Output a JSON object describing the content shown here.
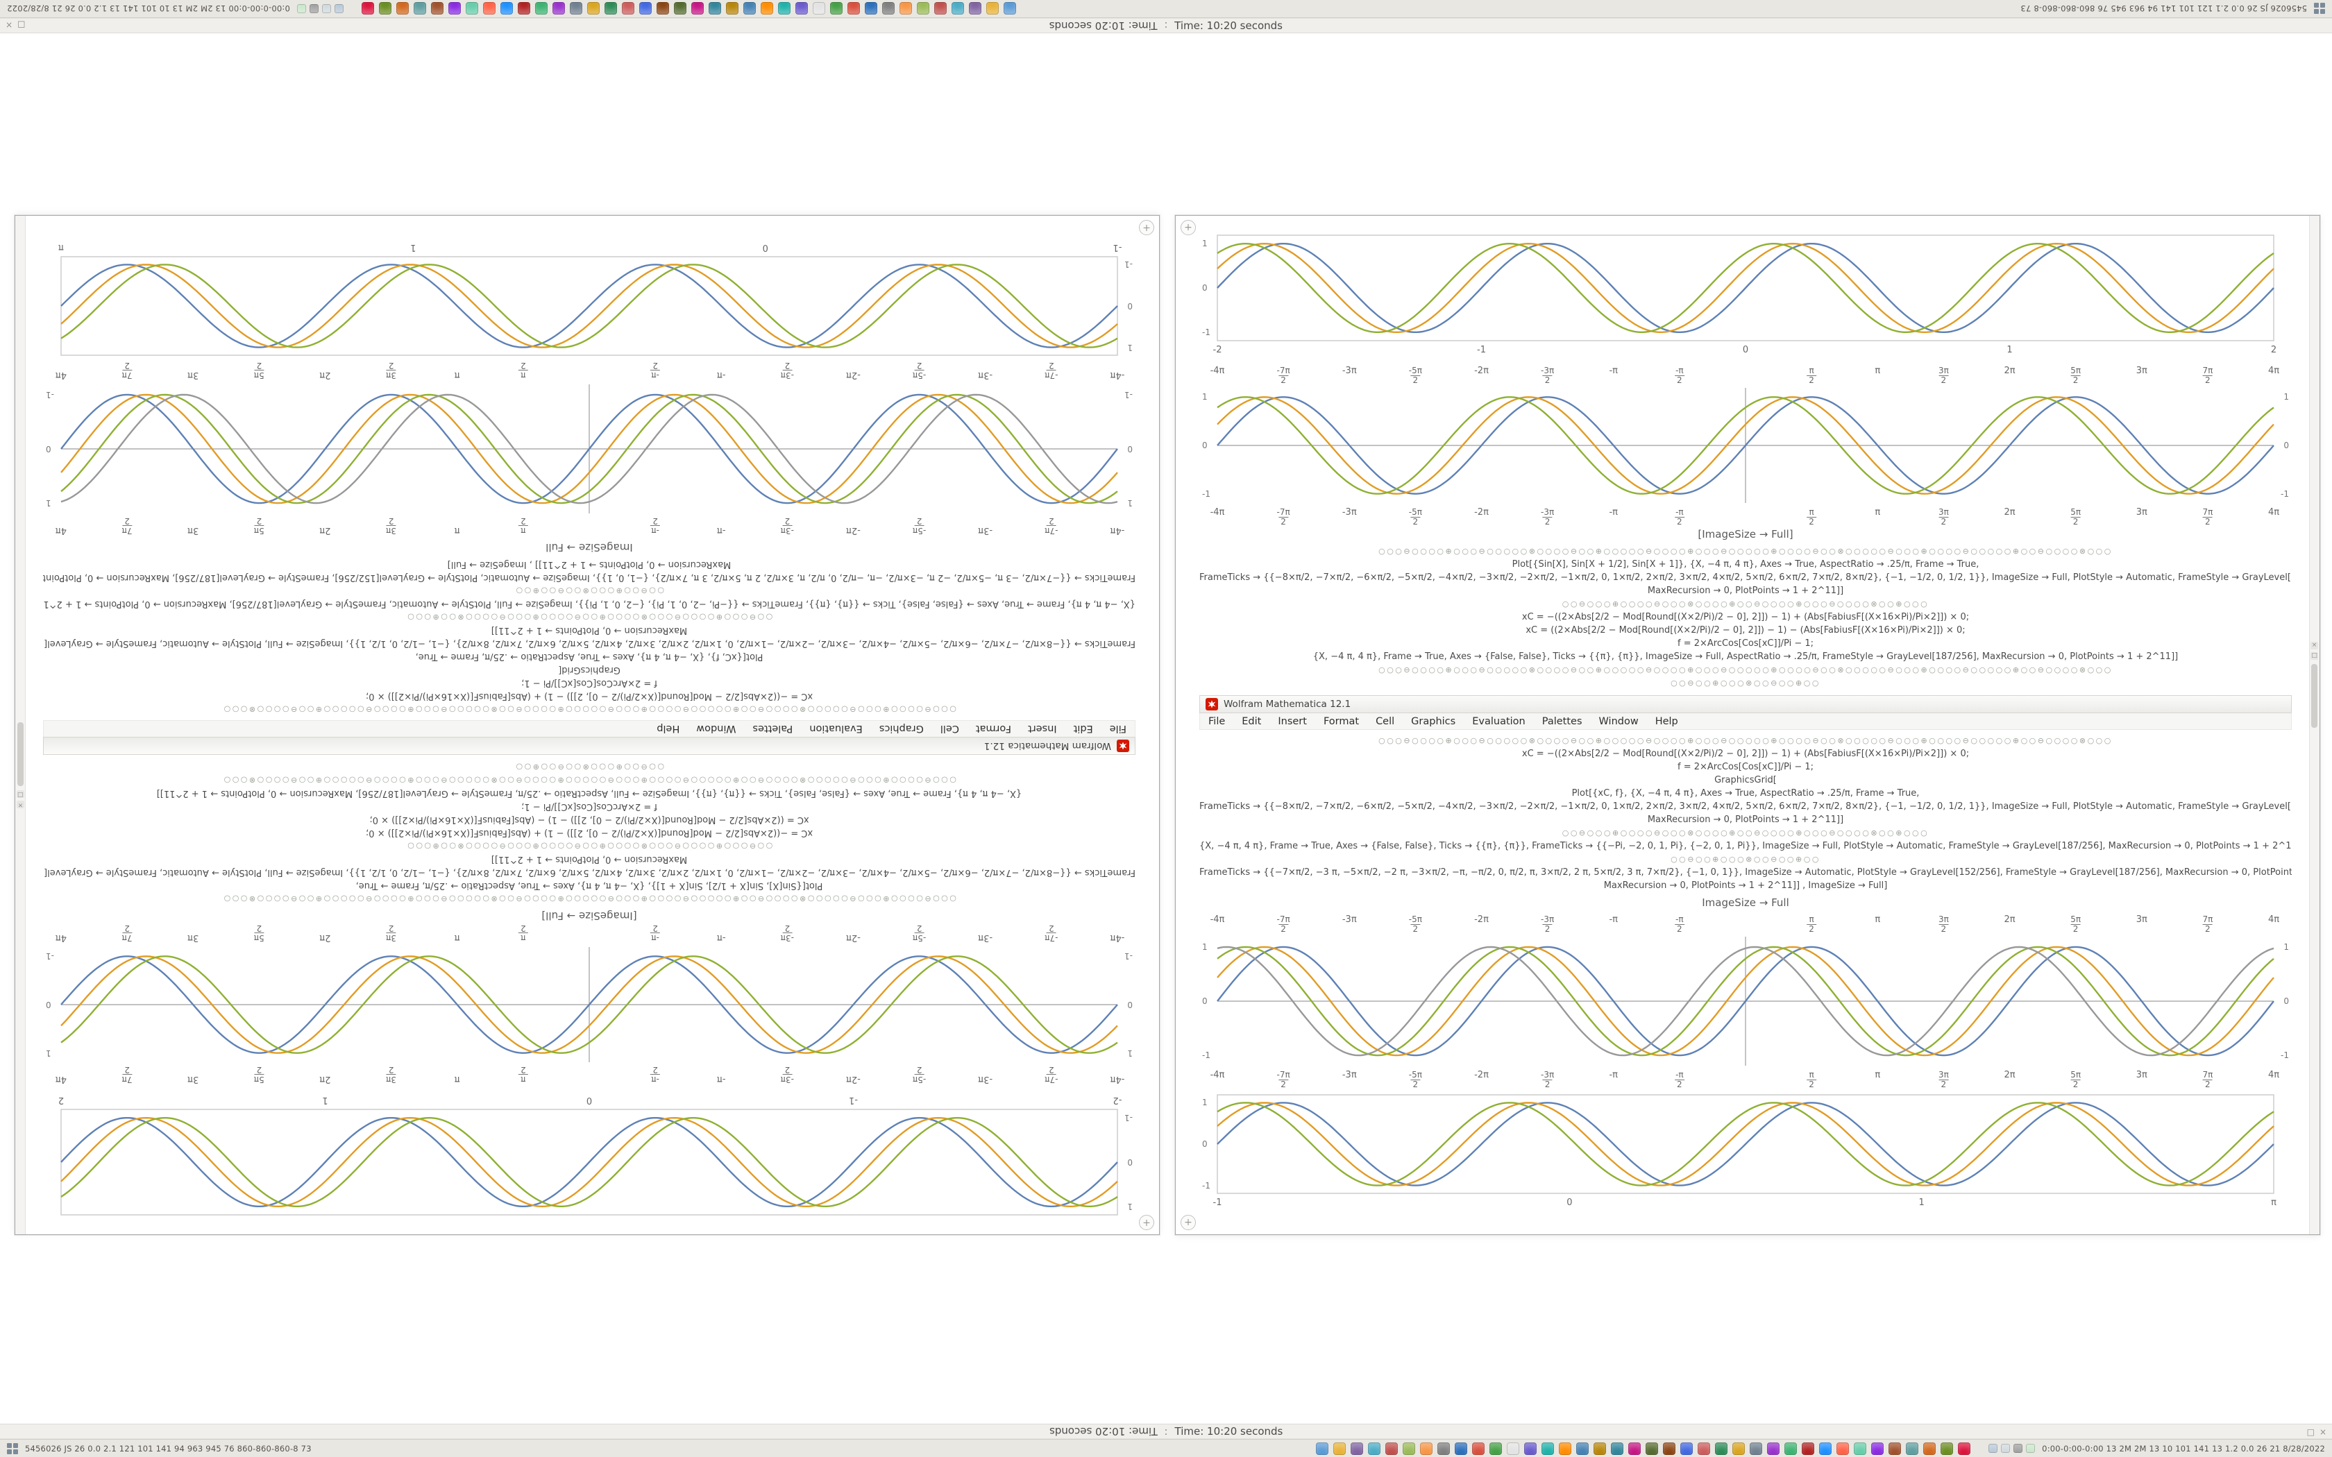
{
  "status_strip": {
    "time_text": "Time: 10:20 seconds",
    "separator": ":",
    "corner_glyphs": [
      "□",
      "×"
    ]
  },
  "taskbar": {
    "left_text": "5456026 JS 26 0.0 2.1 121 101 141 94 963 945 76 860-860-860-8 73",
    "right_text": "0:00-0:00-0:00 13 2M 2M 13 10 101 141 13 1.2 0.0 26 21 8/28/2022",
    "app_icon_colors": [
      "#5b9bd5",
      "#e8b339",
      "#8064a2",
      "#4bacc6",
      "#c0504d",
      "#9bbb59",
      "#f79646",
      "#7f7f7f",
      "#2c6fbb",
      "#d94f3d",
      "#46a046",
      "#e3e3e3",
      "#6a5acd",
      "#20b2aa",
      "#ff8c00",
      "#4682b4",
      "#b8860b",
      "#32859b",
      "#c71585",
      "#556b2f",
      "#8b4513",
      "#4169e1",
      "#cd5c5c",
      "#2e8b57",
      "#daa520",
      "#708090",
      "#9932cc",
      "#3cb371",
      "#b22222",
      "#1e90ff",
      "#ff6347",
      "#66cdaa",
      "#8a2be2",
      "#a0522d",
      "#5f9ea0",
      "#d2691e",
      "#6b8e23",
      "#dc143c"
    ],
    "tray_icon_colors": [
      "#b7c7d6",
      "#cfd8dc",
      "#9e9e9e",
      "#c8e6c9"
    ]
  },
  "window": {
    "title": "Wolfram Mathematica 12.1",
    "menu_items": [
      "File",
      "Edit",
      "Insert",
      "Format",
      "Cell",
      "Graphics",
      "Evaluation",
      "Palettes",
      "Window",
      "Help"
    ],
    "caption_upper": "[ImageSize → Full]",
    "caption_lower": "ImageSize → Full",
    "corner_button_glyph": "+",
    "scrollbar_glyphs": [
      "×",
      "□"
    ],
    "accent_color": "#d41900"
  },
  "code_block_a": [
    {
      "kind": "circles",
      "text": "○○○⊖○○○○⊕○○○⊖○○○○○⊗○○○○⊖○○⊕○○○○○⊖○○○○⊕○○○⊖○○○○○⊕○○○○⊖○○⊗○○○○○⊖○○○⊕○○○○⊖○○○○○⊕○○⊖○○○○⊗○○○"
    },
    {
      "kind": "code",
      "text": "Plot[{Sin[X], Sin[X + 1/2], Sin[X + 1]}, {X, −4 π, 4 π}, Axes → True, AspectRatio → .25/π, Frame → True,"
    },
    {
      "kind": "code",
      "text": "FrameTicks → {{−8×π/2, −7×π/2, −6×π/2, −5×π/2, −4×π/2, −3×π/2, −2×π/2, −1×π/2, 0, 1×π/2, 2×π/2, 3×π/2, 4×π/2, 5×π/2, 6×π/2, 7×π/2, 8×π/2}, {−1, −1/2, 0, 1/2, 1}}, ImageSize → Full, PlotStyle → Automatic, FrameStyle → GrayLevel[187/256],"
    },
    {
      "kind": "code",
      "text": "MaxRecursion → 0, PlotPoints → 1 + 2^11]]"
    },
    {
      "kind": "circles",
      "text": "○○⊖○○○⊕○○○○⊖○○○⊗○○○○⊕○○⊖○○○○⊕○○○⊖○○○○⊗○○⊕○○○"
    },
    {
      "kind": "code",
      "text": "xC = −((2×Abs[2/2 − Mod[Round[(X×2/Pi)/2 − 0], 2]]) − 1) + (Abs[FabiusF[(X×16×Pi)/Pi×2]]) × 0;"
    },
    {
      "kind": "code",
      "text": "xC = ((2×Abs[2/2 − Mod[Round[(X×2/Pi)/2 − 0], 2]]) − 1) − (Abs[FabiusF[(X×16×Pi)/Pi×2]]) × 0;"
    },
    {
      "kind": "code",
      "text": "f = 2×ArcCos[Cos[xC]]/Pi − 1;"
    },
    {
      "kind": "code",
      "text": "{X, −4 π, 4 π}, Frame → True, Axes → {False, False}, Ticks → {{π}, {π}}, ImageSize → Full, AspectRatio → .25/π, FrameStyle → GrayLevel[187/256], MaxRecursion → 0, PlotPoints → 1 + 2^11]]"
    },
    {
      "kind": "circles",
      "text": "○○○⊖○○○○⊕○○○⊖○○○○○⊗○○○○⊖○○⊕○○○○○⊖○○○○⊕○○○⊖○○○○○⊕○○○○⊖○○⊗○○○○○⊖○○○⊕○○○○⊖○○○○○⊕○○⊖○○○○⊗○○○"
    },
    {
      "kind": "circles",
      "text": "○○⊖○○⊕○○○⊗○○⊖○○⊕○○"
    }
  ],
  "code_block_b": [
    {
      "kind": "circles",
      "text": "○○○⊖○○○○⊕○○○⊖○○○○○⊗○○○○⊖○○⊕○○○○○⊖○○○○⊕○○○⊖○○○○○⊕○○○○⊖○○⊗○○○○○⊖○○○⊕○○○○⊖○○○○○⊕○○⊖○○○○⊗○○○"
    },
    {
      "kind": "code",
      "text": "xC = −((2×Abs[2/2 − Mod[Round[(X×2/Pi)/2 − 0], 2]]) − 1) + (Abs[FabiusF[(X×16×Pi)/Pi×2]]) × 0;"
    },
    {
      "kind": "code",
      "text": "f = 2×ArcCos[Cos[xC]]/Pi − 1;"
    },
    {
      "kind": "code",
      "text": "GraphicsGrid["
    },
    {
      "kind": "code",
      "text": "Plot[{xC, f}, {X, −4 π, 4 π}, Axes → True, AspectRatio → .25/π, Frame → True,"
    },
    {
      "kind": "code",
      "text": "FrameTicks → {{−8×π/2, −7×π/2, −6×π/2, −5×π/2, −4×π/2, −3×π/2, −2×π/2, −1×π/2, 0, 1×π/2, 2×π/2, 3×π/2, 4×π/2, 5×π/2, 6×π/2, 7×π/2, 8×π/2}, {−1, −1/2, 0, 1/2, 1}}, ImageSize → Full, PlotStyle → Automatic, FrameStyle → GrayLevel[187/256],"
    },
    {
      "kind": "code",
      "text": "MaxRecursion → 0, PlotPoints → 1 + 2^11]]"
    },
    {
      "kind": "circles",
      "text": "○○⊖○○○⊕○○○○⊖○○○⊗○○○○⊕○○⊖○○○○⊕○○○⊖○○○○⊗○○⊕○○○"
    },
    {
      "kind": "code",
      "text": "{X, −4 π, 4 π}, Frame → True, Axes → {False, False}, Ticks → {{π}, {π}}, FrameTicks → {{−Pi, −2, 0, 1, Pi}, {−2, 0, 1, Pi}}, ImageSize → Full, PlotStyle → Automatic, FrameStyle → GrayLevel[187/256], MaxRecursion → 0, PlotPoints → 1 + 2^11]]"
    },
    {
      "kind": "circles",
      "text": "○○⊖○○⊕○○○⊗○○⊖○○⊕○○"
    },
    {
      "kind": "code",
      "text": "FrameTicks → {{−7×π/2, −3 π, −5×π/2, −2 π, −3×π/2, −π, −π/2, 0, π/2, π, 3×π/2, 2 π, 5×π/2, 3 π, 7×π/2}, {−1, 0, 1}}, ImageSize → Automatic, PlotStyle → GrayLevel[152/256], FrameStyle → GrayLevel[187/256], MaxRecursion → 0, PlotPoints → 1 + 2^11]]"
    },
    {
      "kind": "code",
      "text": "MaxRecursion → 0, PlotPoints → 1 + 2^11]] , ImageSize → Full]"
    }
  ],
  "chart_data": [
    {
      "id": "upper-framed-plot",
      "type": "line",
      "style": "framed",
      "x_range_pi": [
        -2,
        2
      ],
      "cycles": 4,
      "ylim": [
        -1.2,
        1.2
      ],
      "x_tick_labels": [
        "-2",
        "-1",
        "0",
        "1",
        "2"
      ],
      "y_tick_labels": [
        "1",
        "0",
        "-1"
      ],
      "frame_color": "#c9c9c9",
      "series": [
        {
          "name": "Sin[x]",
          "phase": 0,
          "color": "#5E81B5"
        },
        {
          "name": "Sin[x + 1/2]",
          "phase": 0.45,
          "color": "#E19C24"
        },
        {
          "name": "Sin[x + 1]",
          "phase": 0.9,
          "color": "#8FB032"
        }
      ]
    },
    {
      "id": "upper-axes-plot",
      "type": "line",
      "style": "axes",
      "x_range_pi": [
        -4,
        4
      ],
      "cycles": 4,
      "ylim": [
        -1.1,
        1.1
      ],
      "labels_top_and_bottom": true,
      "x_tick_values_pi": [
        -4,
        -3.5,
        -3,
        -2.5,
        -2,
        -1.5,
        -1,
        -0.5,
        0.5,
        1,
        1.5,
        2,
        2.5,
        3,
        3.5,
        4
      ],
      "x_tick_labels": [
        "-4π",
        "-7π/2",
        "-3π",
        "-5π/2",
        "-2π",
        "-3π/2",
        "-π",
        "-π/2",
        "π/2",
        "π",
        "3π/2",
        "2π",
        "5π/2",
        "3π",
        "7π/2",
        "4π"
      ],
      "y_tick_labels": [
        "1",
        "0",
        "-1"
      ],
      "axis_color": "#9e9e9e",
      "series": [
        {
          "name": "Sin[x]",
          "phase": 0,
          "color": "#5E81B5"
        },
        {
          "name": "Sin[x + 1/2]",
          "phase": 0.45,
          "color": "#E19C24"
        },
        {
          "name": "Sin[x + 1]",
          "phase": 0.9,
          "color": "#8FB032"
        }
      ]
    },
    {
      "id": "lower-axes-plot",
      "type": "line",
      "style": "axes",
      "x_range_pi": [
        -4,
        4
      ],
      "cycles": 4,
      "ylim": [
        -1.1,
        1.1
      ],
      "labels_top_and_bottom": true,
      "x_tick_values_pi": [
        -4,
        -3.5,
        -3,
        -2.5,
        -2,
        -1.5,
        -1,
        -0.5,
        0.5,
        1,
        1.5,
        2,
        2.5,
        3,
        3.5,
        4
      ],
      "x_tick_labels": [
        "-4π",
        "-7π/2",
        "-3π",
        "-5π/2",
        "-2π",
        "-3π/2",
        "-π",
        "-π/2",
        "π/2",
        "π",
        "3π/2",
        "2π",
        "5π/2",
        "3π",
        "7π/2",
        "4π"
      ],
      "y_tick_labels": [
        "1",
        "0",
        "-1"
      ],
      "axis_color": "#9e9e9e",
      "series": [
        {
          "name": "Sin[x]",
          "phase": 0,
          "color": "#5E81B5"
        },
        {
          "name": "Sin[x + 1/2]",
          "phase": 0.45,
          "color": "#E19C24"
        },
        {
          "name": "Sin[x + 1]",
          "phase": 0.9,
          "color": "#8FB032"
        },
        {
          "name": "GrayLevel[152/256] curve",
          "phase": 1.35,
          "color": "#989898"
        }
      ]
    },
    {
      "id": "lower-framed-plot",
      "type": "line",
      "style": "framed",
      "x_range_pi": [
        -1,
        1
      ],
      "cycles": 4,
      "ylim": [
        -1.2,
        1.2
      ],
      "x_tick_labels": [
        "-1",
        "0",
        "1",
        "π"
      ],
      "y_tick_labels": [
        "1",
        "0",
        "-1"
      ],
      "frame_color": "#c9c9c9",
      "series": [
        {
          "name": "Sin[x]",
          "phase": 0,
          "color": "#5E81B5"
        },
        {
          "name": "Sin[x + 1/2]",
          "phase": 0.45,
          "color": "#E19C24"
        },
        {
          "name": "Sin[x + 1]",
          "phase": 0.9,
          "color": "#8FB032"
        }
      ]
    }
  ]
}
